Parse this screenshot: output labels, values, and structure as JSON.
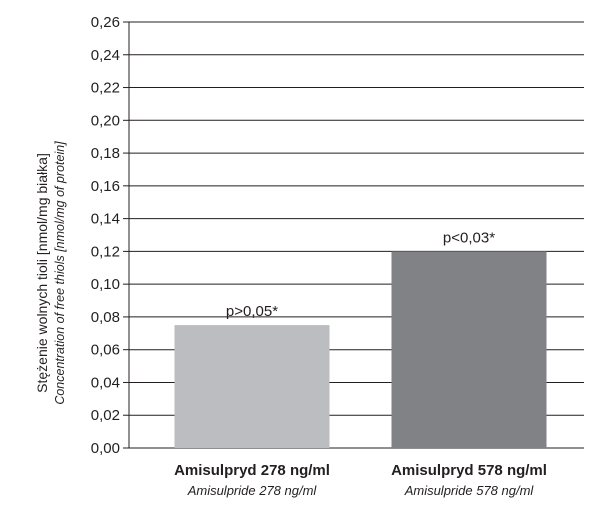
{
  "chart_data": {
    "type": "bar",
    "categories": [
      "Amisulpryd 278 ng/ml",
      "Amisulpryd 578 ng/ml"
    ],
    "categories_secondary": [
      "Amisulpride 278 ng/ml",
      "Amisulpride 578 ng/ml"
    ],
    "values": [
      0.075,
      0.12
    ],
    "data_labels": [
      "p>0,05*",
      "p<0,03*"
    ],
    "ylabel": "Stężenie wolnych tioli [nmol/mg białka]",
    "ylabel_secondary": "Concentration of free thiols [nmol/mg of protein]",
    "xlabel": "",
    "ylim": [
      0,
      0.26
    ],
    "yticks": [
      "0,00",
      "0,02",
      "0,04",
      "0,06",
      "0,08",
      "0,10",
      "0,12",
      "0,14",
      "0,16",
      "0,18",
      "0,20",
      "0,22",
      "0,24",
      "0,26"
    ],
    "grid": true,
    "colors": [
      "#bcbdc0",
      "#808285"
    ],
    "grid_color": "#231f20"
  }
}
